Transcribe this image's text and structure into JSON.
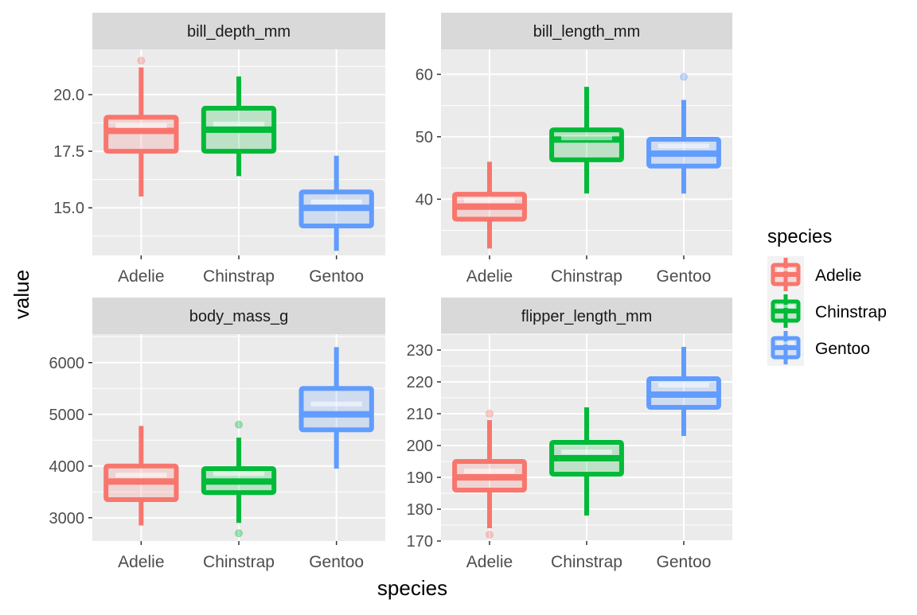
{
  "chart_data": {
    "type": "box",
    "layout": "facet_wrap 2x2, free y scales",
    "xlabel": "species",
    "ylabel": "value",
    "legend": {
      "title": "species",
      "placement": "right",
      "entries": [
        "Adelie",
        "Chinstrap",
        "Gentoo"
      ]
    },
    "categories": [
      "Adelie",
      "Chinstrap",
      "Gentoo"
    ],
    "colors": {
      "Adelie": "#F8766D",
      "Chinstrap": "#00BA38",
      "Gentoo": "#619CFF"
    },
    "panel_background": "#EBEBEB",
    "strip_background": "#D9D9D9",
    "grid": true,
    "facets": [
      {
        "title": "bill_depth_mm",
        "ylim": [
          12.9,
          22.0
        ],
        "yticks": [
          "15.0",
          "17.5",
          "20.0"
        ],
        "boxes": [
          {
            "category": "Adelie",
            "min": 15.5,
            "q1": 17.5,
            "median": 18.4,
            "q3": 19.0,
            "max": 21.2,
            "mean": 18.35,
            "outliers": [
              21.5
            ]
          },
          {
            "category": "Chinstrap",
            "min": 16.4,
            "q1": 17.5,
            "median": 18.45,
            "q3": 19.4,
            "max": 20.8,
            "mean": 18.42,
            "outliers": []
          },
          {
            "category": "Gentoo",
            "min": 13.1,
            "q1": 14.2,
            "median": 15.0,
            "q3": 15.7,
            "max": 17.3,
            "mean": 14.98,
            "outliers": []
          }
        ]
      },
      {
        "title": "bill_length_mm",
        "ylim": [
          31,
          64
        ],
        "yticks": [
          "40",
          "50",
          "60"
        ],
        "boxes": [
          {
            "category": "Adelie",
            "min": 32.1,
            "q1": 36.8,
            "median": 38.8,
            "q3": 40.8,
            "max": 46.0,
            "mean": 38.8,
            "outliers": []
          },
          {
            "category": "Chinstrap",
            "min": 40.9,
            "q1": 46.3,
            "median": 49.55,
            "q3": 51.1,
            "max": 58.0,
            "mean": 48.8,
            "outliers": []
          },
          {
            "category": "Gentoo",
            "min": 40.9,
            "q1": 45.3,
            "median": 47.3,
            "q3": 49.6,
            "max": 55.9,
            "mean": 47.5,
            "outliers": [
              59.6
            ]
          }
        ]
      },
      {
        "title": "body_mass_g",
        "ylim": [
          2550,
          6550
        ],
        "yticks": [
          "3000",
          "4000",
          "5000",
          "6000"
        ],
        "boxes": [
          {
            "category": "Adelie",
            "min": 2850,
            "q1": 3350,
            "median": 3700,
            "q3": 4000,
            "max": 4775,
            "mean": 3700,
            "outliers": []
          },
          {
            "category": "Chinstrap",
            "min": 2900,
            "q1": 3487.5,
            "median": 3700,
            "q3": 3950,
            "max": 4550,
            "mean": 3733,
            "outliers": [
              4800,
              2700
            ]
          },
          {
            "category": "Gentoo",
            "min": 3950,
            "q1": 4700,
            "median": 5000,
            "q3": 5500,
            "max": 6300,
            "mean": 5076,
            "outliers": []
          }
        ]
      },
      {
        "title": "flipper_length_mm",
        "ylim": [
          170,
          235
        ],
        "yticks": [
          "170",
          "180",
          "190",
          "200",
          "210",
          "220",
          "230"
        ],
        "boxes": [
          {
            "category": "Adelie",
            "min": 174,
            "q1": 186,
            "median": 190,
            "q3": 195,
            "max": 208,
            "mean": 190,
            "outliers": [
              210,
              172
            ]
          },
          {
            "category": "Chinstrap",
            "min": 178,
            "q1": 191,
            "median": 196,
            "q3": 201,
            "max": 212,
            "mean": 196,
            "outliers": []
          },
          {
            "category": "Gentoo",
            "min": 203,
            "q1": 212,
            "median": 216,
            "q3": 221,
            "max": 231,
            "mean": 217,
            "outliers": []
          }
        ]
      }
    ]
  }
}
